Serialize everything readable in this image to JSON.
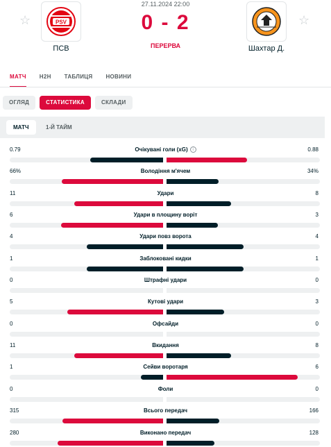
{
  "match": {
    "datetime": "27.11.2024 22:00",
    "score": "0 - 2",
    "status": "ПЕРЕРВА",
    "home": {
      "name": "ПСВ",
      "logo_icon": "psv-crest-icon",
      "logo_text": "PSV"
    },
    "away": {
      "name": "Шахтар Д.",
      "logo_icon": "shakhtar-crest-icon"
    }
  },
  "main_tabs": [
    {
      "label": "МАТЧ",
      "active": true
    },
    {
      "label": "H2H",
      "active": false
    },
    {
      "label": "ТАБЛИЦЯ",
      "active": false
    },
    {
      "label": "НОВИНИ",
      "active": false
    }
  ],
  "sub_tabs": [
    {
      "label": "ОГЛЯД",
      "active": false
    },
    {
      "label": "СТАТИСТИКА",
      "active": true
    },
    {
      "label": "СКЛАДИ",
      "active": false
    }
  ],
  "period_tabs": [
    {
      "label": "МАТЧ",
      "active": true
    },
    {
      "label": "1-Й ТАЙМ",
      "active": false
    }
  ],
  "colors": {
    "accent": "#dc0a3c",
    "dark": "#001e28",
    "track": "#eef0f1"
  },
  "stats": [
    {
      "label": "Очікувані голи (xG)",
      "home": "0.79",
      "away": "0.88",
      "home_num": 0.79,
      "away_num": 0.88,
      "info_icon": true
    },
    {
      "label": "Володіння м'ячем",
      "home": "66%",
      "away": "34%",
      "home_num": 66,
      "away_num": 34
    },
    {
      "label": "Удари",
      "home": "11",
      "away": "8",
      "home_num": 11,
      "away_num": 8
    },
    {
      "label": "Удари в площину воріт",
      "home": "6",
      "away": "3",
      "home_num": 6,
      "away_num": 3
    },
    {
      "label": "Удари повз ворота",
      "home": "4",
      "away": "4",
      "home_num": 4,
      "away_num": 4
    },
    {
      "label": "Заблоковані кидки",
      "home": "1",
      "away": "1",
      "home_num": 1,
      "away_num": 1
    },
    {
      "label": "Штрафні удари",
      "home": "0",
      "away": "0",
      "home_num": 0,
      "away_num": 0
    },
    {
      "label": "Кутові удари",
      "home": "5",
      "away": "3",
      "home_num": 5,
      "away_num": 3
    },
    {
      "label": "Офсайди",
      "home": "0",
      "away": "0",
      "home_num": 0,
      "away_num": 0
    },
    {
      "label": "Вкидання",
      "home": "11",
      "away": "8",
      "home_num": 11,
      "away_num": 8
    },
    {
      "label": "Сейви воротаря",
      "home": "1",
      "away": "6",
      "home_num": 1,
      "away_num": 6
    },
    {
      "label": "Фоли",
      "home": "0",
      "away": "0",
      "home_num": 0,
      "away_num": 0
    },
    {
      "label": "Всього передач",
      "home": "315",
      "away": "166",
      "home_num": 315,
      "away_num": 166
    },
    {
      "label": "Виконано передач",
      "home": "280",
      "away": "128",
      "home_num": 280,
      "away_num": 128
    }
  ]
}
